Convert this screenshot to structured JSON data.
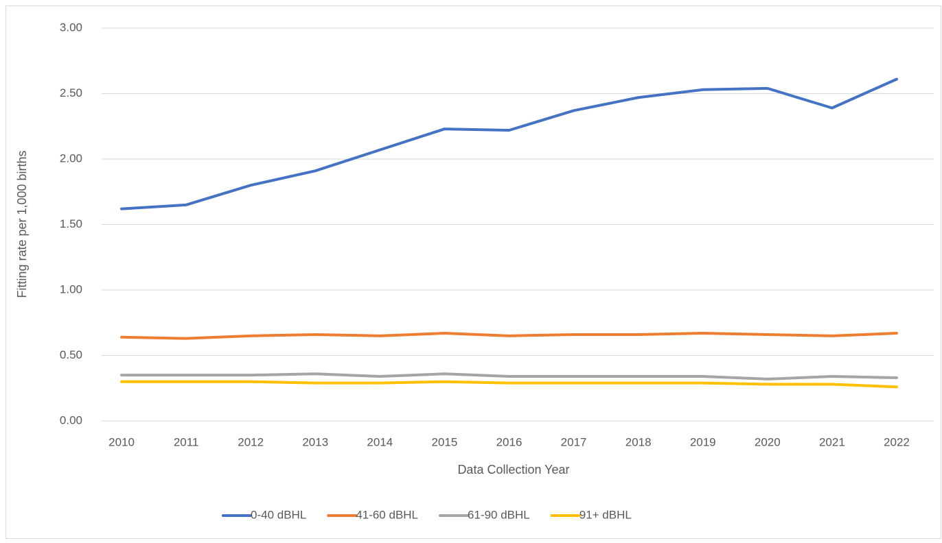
{
  "chart_data": {
    "type": "line",
    "y_label": "Fitting rate per 1,000 births",
    "x_label": "Data Collection Year",
    "categories": [
      "2010",
      "2011",
      "2012",
      "2013",
      "2014",
      "2015",
      "2016",
      "2017",
      "2018",
      "2019",
      "2020",
      "2021",
      "2022"
    ],
    "series": [
      {
        "name": "0-40 dBHL",
        "color": "#4472c4",
        "values": [
          1.62,
          1.65,
          1.8,
          1.91,
          2.07,
          2.23,
          2.22,
          2.37,
          2.47,
          2.53,
          2.54,
          2.39,
          2.61
        ]
      },
      {
        "name": "41-60 dBHL",
        "color": "#ed7d31",
        "values": [
          0.64,
          0.63,
          0.65,
          0.66,
          0.65,
          0.67,
          0.65,
          0.66,
          0.66,
          0.67,
          0.66,
          0.65,
          0.67
        ]
      },
      {
        "name": "61-90 dBHL",
        "color": "#a5a5a5",
        "values": [
          0.35,
          0.35,
          0.35,
          0.36,
          0.34,
          0.36,
          0.34,
          0.34,
          0.34,
          0.34,
          0.32,
          0.34,
          0.33
        ]
      },
      {
        "name": "91+ dBHL",
        "color": "#ffc000",
        "values": [
          0.3,
          0.3,
          0.3,
          0.29,
          0.29,
          0.3,
          0.29,
          0.29,
          0.29,
          0.29,
          0.28,
          0.28,
          0.26
        ]
      }
    ],
    "ylim": [
      0,
      3
    ],
    "yticks": [
      {
        "value": 0,
        "label": "0.00"
      },
      {
        "value": 0.5,
        "label": "0.50"
      },
      {
        "value": 1,
        "label": "1.00"
      },
      {
        "value": 1.5,
        "label": "1.50"
      },
      {
        "value": 2,
        "label": "2.00"
      },
      {
        "value": 2.5,
        "label": "2.50"
      },
      {
        "value": 3,
        "label": "3.00"
      }
    ],
    "grid": true,
    "legend": "bottom"
  }
}
